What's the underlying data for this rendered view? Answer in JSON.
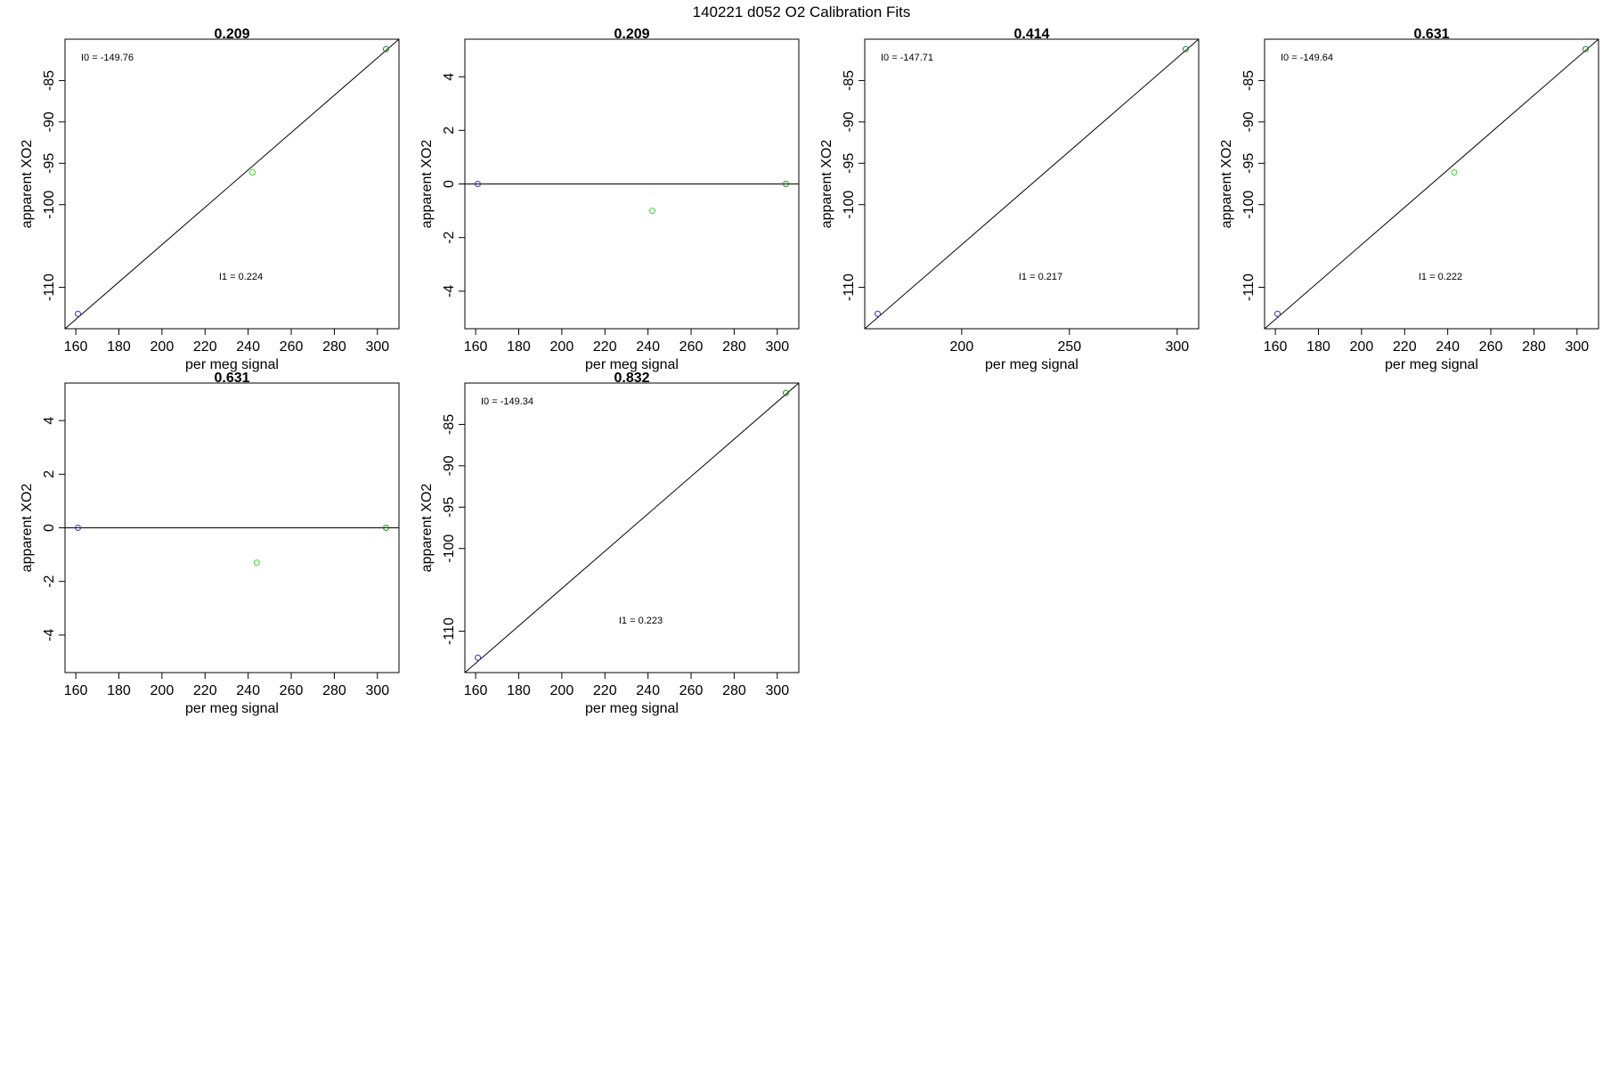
{
  "title": "140221   d052   O2 Calibration Fits",
  "colors": {
    "axis": "#000000",
    "fit_line": "#000000",
    "point_low": "#3333cc",
    "point_mid": "#33dd33",
    "point_high": "#228822"
  },
  "chart_data": [
    {
      "type": "scatter",
      "title": "0.209",
      "xlabel": "per meg signal",
      "ylabel": "apparent XO2",
      "xlim": [
        155,
        310
      ],
      "ylim": [
        -115,
        -80
      ],
      "xticks": [
        160,
        180,
        200,
        220,
        240,
        260,
        280,
        300
      ],
      "yticks": [
        -110,
        -100,
        -95,
        -90,
        -85
      ],
      "points": [
        {
          "x": 161,
          "y": -113.2,
          "color": "point_low"
        },
        {
          "x": 242,
          "y": -96.1,
          "color": "point_mid"
        },
        {
          "x": 304,
          "y": -81.2,
          "color": "point_high"
        }
      ],
      "fit_line": [
        [
          155,
          -115
        ],
        [
          310,
          -80
        ]
      ],
      "annotations": [
        {
          "text": "I0 =  -149.76",
          "pos": "top-left"
        },
        {
          "text": "I1 =  0.224",
          "pos": "lower-center"
        }
      ]
    },
    {
      "type": "scatter",
      "title": "0.209",
      "xlabel": "per meg signal",
      "ylabel": "apparent XO2",
      "xlim": [
        155,
        310
      ],
      "ylim": [
        -5.4,
        5.4
      ],
      "xticks": [
        160,
        180,
        200,
        220,
        240,
        260,
        280,
        300
      ],
      "yticks": [
        -4,
        -2,
        0,
        2,
        4
      ],
      "points": [
        {
          "x": 161,
          "y": 0,
          "color": "point_low"
        },
        {
          "x": 242,
          "y": -1.0,
          "color": "point_mid"
        },
        {
          "x": 304,
          "y": 0,
          "color": "point_high"
        }
      ],
      "fit_line": [
        [
          155,
          0
        ],
        [
          310,
          0
        ]
      ],
      "annotations": []
    },
    {
      "type": "scatter",
      "title": "0.414",
      "xlabel": "per meg signal",
      "ylabel": "apparent XO2",
      "xlim": [
        155,
        310
      ],
      "ylim": [
        -115,
        -80
      ],
      "xticks": [
        200,
        250,
        300
      ],
      "yticks": [
        -110,
        -100,
        -95,
        -90,
        -85
      ],
      "points": [
        {
          "x": 161,
          "y": -113.2,
          "color": "point_low"
        },
        {
          "x": 304,
          "y": -81.2,
          "color": "point_high"
        }
      ],
      "fit_line": [
        [
          155,
          -115
        ],
        [
          310,
          -80
        ]
      ],
      "annotations": [
        {
          "text": "I0 =  -147.71",
          "pos": "top-left"
        },
        {
          "text": "I1 =  0.217",
          "pos": "lower-center"
        }
      ]
    },
    {
      "type": "scatter",
      "title": "0.631",
      "xlabel": "per meg signal",
      "ylabel": "apparent XO2",
      "xlim": [
        155,
        310
      ],
      "ylim": [
        -115,
        -80
      ],
      "xticks": [
        160,
        180,
        200,
        220,
        240,
        260,
        280,
        300
      ],
      "yticks": [
        -110,
        -100,
        -95,
        -90,
        -85
      ],
      "points": [
        {
          "x": 161,
          "y": -113.2,
          "color": "point_low"
        },
        {
          "x": 243,
          "y": -96.1,
          "color": "point_mid"
        },
        {
          "x": 304,
          "y": -81.2,
          "color": "point_high"
        }
      ],
      "fit_line": [
        [
          155,
          -115
        ],
        [
          310,
          -80
        ]
      ],
      "annotations": [
        {
          "text": "I0 =  -149.64",
          "pos": "top-left"
        },
        {
          "text": "I1 =  0.222",
          "pos": "lower-center"
        }
      ]
    },
    {
      "type": "scatter",
      "title": "0.631",
      "xlabel": "per meg signal",
      "ylabel": "apparent XO2",
      "xlim": [
        155,
        310
      ],
      "ylim": [
        -5.4,
        5.4
      ],
      "xticks": [
        160,
        180,
        200,
        220,
        240,
        260,
        280,
        300
      ],
      "yticks": [
        -4,
        -2,
        0,
        2,
        4
      ],
      "points": [
        {
          "x": 161,
          "y": 0,
          "color": "point_low"
        },
        {
          "x": 244,
          "y": -1.3,
          "color": "point_mid"
        },
        {
          "x": 304,
          "y": 0,
          "color": "point_high"
        }
      ],
      "fit_line": [
        [
          155,
          0
        ],
        [
          310,
          0
        ]
      ],
      "annotations": []
    },
    {
      "type": "scatter",
      "title": "0.832",
      "xlabel": "per meg signal",
      "ylabel": "apparent XO2",
      "xlim": [
        155,
        310
      ],
      "ylim": [
        -115,
        -80
      ],
      "xticks": [
        160,
        180,
        200,
        220,
        240,
        260,
        280,
        300
      ],
      "yticks": [
        -110,
        -100,
        -95,
        -90,
        -85
      ],
      "points": [
        {
          "x": 161,
          "y": -113.2,
          "color": "point_low"
        },
        {
          "x": 304,
          "y": -81.2,
          "color": "point_high"
        }
      ],
      "fit_line": [
        [
          155,
          -115
        ],
        [
          310,
          -80
        ]
      ],
      "annotations": [
        {
          "text": "I0 =  -149.34",
          "pos": "top-left"
        },
        {
          "text": "I1 =  0.223",
          "pos": "lower-center"
        }
      ]
    }
  ]
}
